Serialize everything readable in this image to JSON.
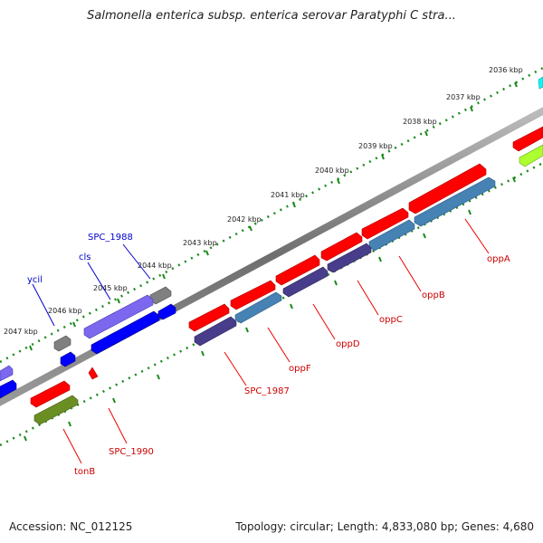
{
  "title": "Salmonella enterica subsp. enterica serovar Paratyphi C stra...",
  "footer": {
    "accession": "Accession: NC_012125",
    "summary": "Topology: circular; Length: 4,833,080 bp; Genes: 4,680"
  },
  "colors": {
    "forward_red": "#ff0000",
    "steelblue": "#4682b4",
    "darkslate": "#483d8b",
    "purple": "#7b68ee",
    "blue": "#0000ff",
    "gray": "#808080",
    "olive": "#6b8e23",
    "lime": "#adff2f",
    "cyan": "#00ffff",
    "label_red": "#cc0000",
    "label_blue": "#0000cc"
  },
  "ticks": [
    "2036 kbp",
    "2037 kbp",
    "2038 kbp",
    "2039 kbp",
    "2040 kbp",
    "2041 kbp",
    "2042 kbp",
    "2043 kbp",
    "2044 kbp",
    "2045 kbp",
    "2046 kbp",
    "2047 kbp"
  ],
  "labels_red": [
    "oppA",
    "oppB",
    "oppC",
    "oppD",
    "oppF",
    "SPC_1987",
    "SPC_1990",
    "tonB"
  ],
  "labels_blue": [
    "SPC_1988",
    "cls",
    "ycil"
  ]
}
